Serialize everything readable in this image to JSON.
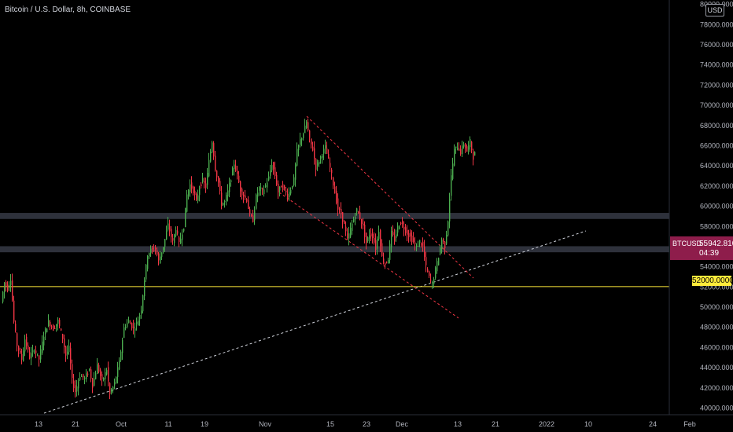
{
  "header": {
    "title": "Bitcoin / U.S. Dollar, 8h, COINBASE",
    "currency_button": "USD"
  },
  "chart_data": {
    "type": "candlestick",
    "y_ticks": [
      "40000.0000",
      "42000.0000",
      "44000.0000",
      "46000.0000",
      "48000.0000",
      "50000.0000",
      "52000.0000",
      "54000.0000",
      "56000.0000",
      "58000.0000",
      "60000.0000",
      "62000.0000",
      "64000.0000",
      "66000.0000",
      "68000.0000",
      "70000.0000",
      "72000.0000",
      "74000.0000",
      "76000.0000",
      "78000.0000",
      "80000.0000"
    ],
    "x_ticks": [
      "13",
      "21",
      "Oct",
      "11",
      "19",
      "Nov",
      "15",
      "23",
      "Dec",
      "13",
      "21",
      "2022",
      "10",
      "24",
      "Feb"
    ],
    "ylim": [
      39300,
      80400
    ],
    "symbol": "BTCUSD",
    "last_price": "55942.8100",
    "countdown": "04:39",
    "horizontal_level": "52000.0000",
    "up_color": "#4caf50",
    "down_color": "#f23645",
    "support_zones": [
      {
        "from": 58700,
        "to": 59300
      },
      {
        "from": 55400,
        "to": 56000
      }
    ],
    "waypoints": [
      [
        0,
        50500
      ],
      [
        4,
        52400
      ],
      [
        8,
        51800
      ],
      [
        12,
        52800
      ],
      [
        16,
        48500
      ],
      [
        20,
        46200
      ],
      [
        26,
        44800
      ],
      [
        30,
        46800
      ],
      [
        36,
        45000
      ],
      [
        42,
        45800
      ],
      [
        48,
        44800
      ],
      [
        54,
        47200
      ],
      [
        60,
        48500
      ],
      [
        66,
        47800
      ],
      [
        72,
        48600
      ],
      [
        78,
        46900
      ],
      [
        82,
        45200
      ],
      [
        86,
        45900
      ],
      [
        90,
        42700
      ],
      [
        94,
        41600
      ],
      [
        100,
        43200
      ],
      [
        106,
        42900
      ],
      [
        112,
        43800
      ],
      [
        116,
        42200
      ],
      [
        122,
        44200
      ],
      [
        128,
        42600
      ],
      [
        134,
        43800
      ],
      [
        138,
        41300
      ],
      [
        144,
        42400
      ],
      [
        150,
        44500
      ],
      [
        156,
        47900
      ],
      [
        162,
        48600
      ],
      [
        168,
        47800
      ],
      [
        174,
        48700
      ],
      [
        178,
        49800
      ],
      [
        182,
        52700
      ],
      [
        186,
        55200
      ],
      [
        190,
        55600
      ],
      [
        196,
        55800
      ],
      [
        200,
        54500
      ],
      [
        206,
        56000
      ],
      [
        212,
        58100
      ],
      [
        218,
        56400
      ],
      [
        222,
        57800
      ],
      [
        226,
        56200
      ],
      [
        232,
        58000
      ],
      [
        236,
        61100
      ],
      [
        240,
        62100
      ],
      [
        244,
        61500
      ],
      [
        248,
        60400
      ],
      [
        252,
        61900
      ],
      [
        256,
        62500
      ],
      [
        260,
        61900
      ],
      [
        264,
        64400
      ],
      [
        268,
        66400
      ],
      [
        272,
        63700
      ],
      [
        276,
        62300
      ],
      [
        280,
        60200
      ],
      [
        284,
        60400
      ],
      [
        288,
        61400
      ],
      [
        292,
        62800
      ],
      [
        296,
        64200
      ],
      [
        300,
        63000
      ],
      [
        304,
        61600
      ],
      [
        308,
        61000
      ],
      [
        312,
        60600
      ],
      [
        316,
        59000
      ],
      [
        320,
        58600
      ],
      [
        324,
        60900
      ],
      [
        328,
        61800
      ],
      [
        332,
        61400
      ],
      [
        336,
        62000
      ],
      [
        340,
        62800
      ],
      [
        344,
        64200
      ],
      [
        348,
        63000
      ],
      [
        352,
        61400
      ],
      [
        356,
        62000
      ],
      [
        360,
        61600
      ],
      [
        364,
        61000
      ],
      [
        368,
        61700
      ],
      [
        372,
        62600
      ],
      [
        376,
        65400
      ],
      [
        380,
        66500
      ],
      [
        384,
        67200
      ],
      [
        388,
        68300
      ],
      [
        392,
        66500
      ],
      [
        396,
        65600
      ],
      [
        400,
        63800
      ],
      [
        404,
        64500
      ],
      [
        408,
        65200
      ],
      [
        412,
        65800
      ],
      [
        416,
        64500
      ],
      [
        420,
        63000
      ],
      [
        424,
        61300
      ],
      [
        428,
        59700
      ],
      [
        432,
        59200
      ],
      [
        436,
        58100
      ],
      [
        440,
        56600
      ],
      [
        444,
        57700
      ],
      [
        448,
        58700
      ],
      [
        452,
        59600
      ],
      [
        456,
        58800
      ],
      [
        460,
        57900
      ],
      [
        464,
        56300
      ],
      [
        468,
        57200
      ],
      [
        472,
        57000
      ],
      [
        476,
        55800
      ],
      [
        480,
        57600
      ],
      [
        484,
        54900
      ],
      [
        488,
        54200
      ],
      [
        492,
        54800
      ],
      [
        496,
        57300
      ],
      [
        500,
        56600
      ],
      [
        504,
        57900
      ],
      [
        508,
        58400
      ],
      [
        512,
        57800
      ],
      [
        516,
        57300
      ],
      [
        520,
        56900
      ],
      [
        524,
        56400
      ],
      [
        528,
        55900
      ],
      [
        532,
        56500
      ],
      [
        536,
        55900
      ],
      [
        540,
        53900
      ],
      [
        544,
        52900
      ],
      [
        548,
        52200
      ],
      [
        552,
        53700
      ],
      [
        556,
        55000
      ],
      [
        560,
        56700
      ],
      [
        564,
        56000
      ],
      [
        568,
        58600
      ],
      [
        572,
        62900
      ],
      [
        576,
        65500
      ],
      [
        580,
        65900
      ],
      [
        584,
        65300
      ],
      [
        588,
        66200
      ],
      [
        592,
        65400
      ],
      [
        596,
        66400
      ],
      [
        600,
        64800
      ],
      [
        602,
        65200
      ]
    ]
  }
}
